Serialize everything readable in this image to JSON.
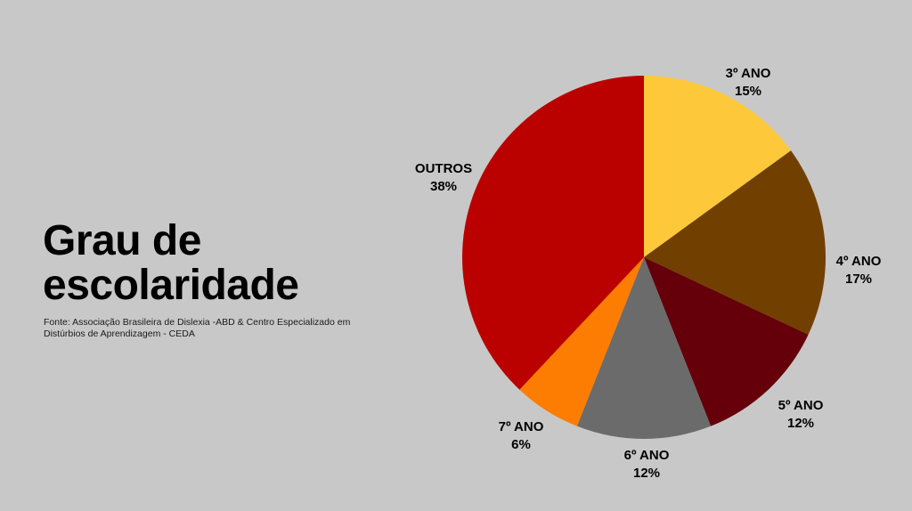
{
  "title_lines": [
    "Grau de",
    "escolaridade"
  ],
  "source_lines": [
    "Fonte: Associação Brasileira de Dislexia -ABD & Centro Especializado em",
    "Distúrbios de Aprendizagem - CEDA"
  ],
  "chart_data": {
    "type": "pie",
    "start_angle_deg": 0,
    "direction": "clockwise",
    "slices": [
      {
        "label": "3º ANO",
        "value": 15,
        "display": "15%",
        "color": "#fdc93b"
      },
      {
        "label": "4º ANO",
        "value": 17,
        "display": "17%",
        "color": "#714000"
      },
      {
        "label": "5º ANO",
        "value": 12,
        "display": "12%",
        "color": "#65000a"
      },
      {
        "label": "6º ANO",
        "value": 12,
        "display": "12%",
        "color": "#6b6b6b"
      },
      {
        "label": "7º ANO",
        "value": 6,
        "display": "6%",
        "color": "#fc7d02"
      },
      {
        "label": "OUTROS",
        "value": 38,
        "display": "38%",
        "color": "#bb0000"
      }
    ]
  }
}
